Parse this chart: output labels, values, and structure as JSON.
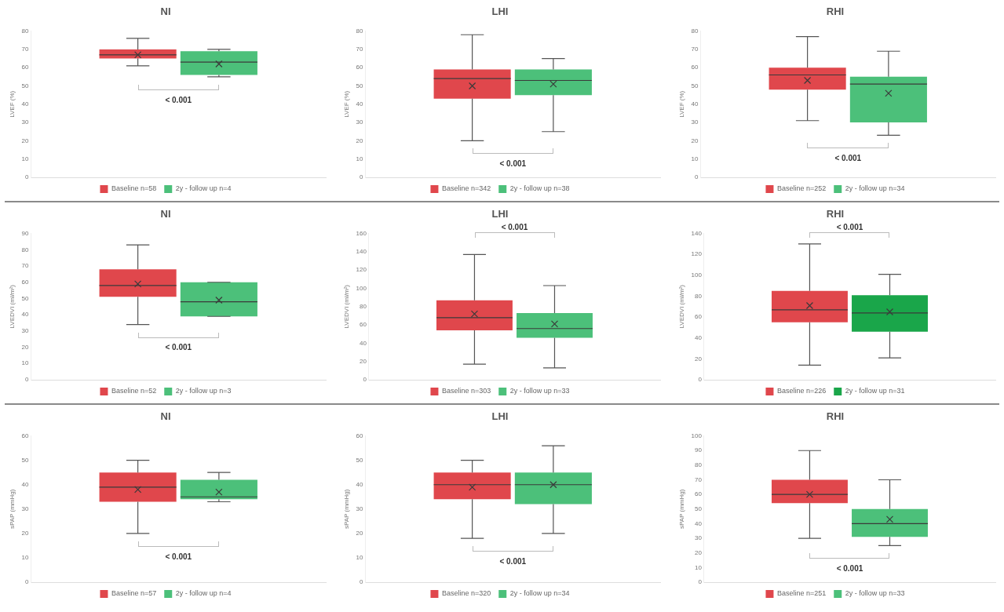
{
  "chart_data": [
    {
      "type": "box",
      "title": "NI",
      "ylabel": "LVEF (%)",
      "categories": [
        null
      ],
      "ylim": [
        0,
        80
      ],
      "yticks": [
        0,
        10,
        20,
        30,
        40,
        50,
        60,
        70,
        80
      ],
      "tick_labels": "y",
      "legend": "bottom",
      "annotations": [
        "< 0.001"
      ],
      "series": [
        {
          "name": "Baseline n=58",
          "color": "#e0474c",
          "boxes": [
            {
              "low": 61,
              "q1": 65,
              "median": 67,
              "q3": 70,
              "high": 76,
              "mean": 67
            }
          ]
        },
        {
          "name": "2y - follow up n=4",
          "color": "#4cc07a",
          "boxes": [
            {
              "low": 55,
              "q1": 56,
              "median": 63,
              "q3": 69,
              "high": 70,
              "mean": 62
            }
          ]
        }
      ]
    },
    {
      "type": "box",
      "title": "LHI",
      "ylabel": "LVEF (%)",
      "categories": [
        null
      ],
      "ylim": [
        0,
        80
      ],
      "yticks": [
        0,
        10,
        20,
        30,
        40,
        50,
        60,
        70,
        80
      ],
      "tick_labels": "y",
      "legend": "bottom",
      "annotations": [
        "< 0.001"
      ],
      "series": [
        {
          "name": "Baseline n=342",
          "color": "#e0474c",
          "boxes": [
            {
              "low": 20,
              "q1": 43,
              "median": 54,
              "q3": 59,
              "high": 78,
              "mean": 50
            }
          ]
        },
        {
          "name": "2y - follow up n=38",
          "color": "#4cc07a",
          "boxes": [
            {
              "low": 25,
              "q1": 45,
              "median": 53,
              "q3": 59,
              "high": 65,
              "mean": 51
            }
          ]
        }
      ]
    },
    {
      "type": "box",
      "title": "RHI",
      "ylabel": "LVEF (%)",
      "categories": [
        null
      ],
      "ylim": [
        0,
        80
      ],
      "yticks": [
        0,
        10,
        20,
        30,
        40,
        50,
        60,
        70,
        80
      ],
      "tick_labels": "y",
      "legend": "bottom",
      "annotations": [
        "< 0.001"
      ],
      "series": [
        {
          "name": "Baseline n=252",
          "color": "#e0474c",
          "boxes": [
            {
              "low": 31,
              "q1": 48,
              "median": 56,
              "q3": 60,
              "high": 77,
              "mean": 53
            }
          ]
        },
        {
          "name": "2y - follow up n=34",
          "color": "#4cc07a",
          "boxes": [
            {
              "low": 23,
              "q1": 30,
              "median": 51,
              "q3": 55,
              "high": 69,
              "mean": 46
            }
          ]
        }
      ]
    },
    {
      "type": "box",
      "title": "NI",
      "ylabel": "LVEDVI (ml/m²)",
      "categories": [
        null
      ],
      "ylim": [
        0,
        90
      ],
      "yticks": [
        0,
        10,
        20,
        30,
        40,
        50,
        60,
        70,
        80,
        90
      ],
      "tick_labels": "y",
      "legend": "bottom",
      "annotations": [
        "< 0.001"
      ],
      "series": [
        {
          "name": "Baseline n=52",
          "color": "#e0474c",
          "boxes": [
            {
              "low": 34,
              "q1": 51,
              "median": 58,
              "q3": 68,
              "high": 83,
              "mean": 59
            }
          ]
        },
        {
          "name": "2y - follow up n=3",
          "color": "#4cc07a",
          "boxes": [
            {
              "low": 39,
              "q1": 39,
              "median": 48,
              "q3": 60,
              "high": 60,
              "mean": 49
            }
          ]
        }
      ]
    },
    {
      "type": "box",
      "title": "LHI",
      "ylabel": "LVEDVI (ml/m²)",
      "categories": [
        null
      ],
      "ylim": [
        0,
        160
      ],
      "yticks": [
        0,
        20,
        40,
        60,
        80,
        100,
        120,
        140,
        160
      ],
      "tick_labels": "y",
      "legend": "bottom",
      "annotations": [
        "< 0.001"
      ],
      "series": [
        {
          "name": "Baseline n=303",
          "color": "#e0474c",
          "boxes": [
            {
              "low": 17,
              "q1": 54,
              "median": 68,
              "q3": 87,
              "high": 137,
              "mean": 72
            }
          ]
        },
        {
          "name": "2y - follow up n=33",
          "color": "#4cc07a",
          "boxes": [
            {
              "low": 13,
              "q1": 46,
              "median": 56,
              "q3": 73,
              "high": 103,
              "mean": 61
            }
          ]
        }
      ]
    },
    {
      "type": "box",
      "title": "RHI",
      "ylabel": "LVEDVI (ml/m²)",
      "categories": [
        null
      ],
      "ylim": [
        0,
        140
      ],
      "yticks": [
        0,
        20,
        40,
        60,
        80,
        100,
        120,
        140
      ],
      "tick_labels": "y",
      "legend": "bottom",
      "annotations": [
        "< 0.001"
      ],
      "series": [
        {
          "name": "Baseline n=226",
          "color": "#e0474c",
          "boxes": [
            {
              "low": 14,
              "q1": 55,
              "median": 67,
              "q3": 85,
              "high": 130,
              "mean": 71
            }
          ]
        },
        {
          "name": "2y - follow up n=31",
          "color": "#1aa64a",
          "boxes": [
            {
              "low": 21,
              "q1": 46,
              "median": 64,
              "q3": 81,
              "high": 101,
              "mean": 65
            }
          ]
        }
      ]
    },
    {
      "type": "box",
      "title": "NI",
      "ylabel": "sPAP (mmHg)",
      "categories": [
        null
      ],
      "ylim": [
        0,
        60
      ],
      "yticks": [
        0,
        10,
        20,
        30,
        40,
        50,
        60
      ],
      "tick_labels": "y",
      "legend": "bottom",
      "annotations": [
        "< 0.001"
      ],
      "series": [
        {
          "name": "Baseline n=57",
          "color": "#e0474c",
          "boxes": [
            {
              "low": 20,
              "q1": 33,
              "median": 39,
              "q3": 45,
              "high": 50,
              "mean": 38
            }
          ]
        },
        {
          "name": "2y - follow up n=4",
          "color": "#4cc07a",
          "boxes": [
            {
              "low": 33,
              "q1": 34,
              "median": 35,
              "q3": 42,
              "high": 45,
              "mean": 37
            }
          ]
        }
      ]
    },
    {
      "type": "box",
      "title": "LHI",
      "ylabel": "sPAP (mmHg)",
      "categories": [
        null
      ],
      "ylim": [
        0,
        60
      ],
      "yticks": [
        0,
        10,
        20,
        30,
        40,
        50,
        60
      ],
      "tick_labels": "y",
      "legend": "bottom",
      "annotations": [
        "< 0.001"
      ],
      "series": [
        {
          "name": "Baseline n=320",
          "color": "#e0474c",
          "boxes": [
            {
              "low": 18,
              "q1": 34,
              "median": 40,
              "q3": 45,
              "high": 50,
              "mean": 39
            }
          ]
        },
        {
          "name": "2y - follow up n=34",
          "color": "#4cc07a",
          "boxes": [
            {
              "low": 20,
              "q1": 32,
              "median": 40,
              "q3": 45,
              "high": 56,
              "mean": 40
            }
          ]
        }
      ]
    },
    {
      "type": "box",
      "title": "RHI",
      "ylabel": "sPAP (mmHg)",
      "categories": [
        null
      ],
      "ylim": [
        0,
        100
      ],
      "yticks": [
        0,
        10,
        20,
        30,
        40,
        50,
        60,
        70,
        80,
        90,
        100
      ],
      "tick_labels": "y",
      "legend": "bottom",
      "annotations": [
        "< 0.001"
      ],
      "series": [
        {
          "name": "Baseline n=251",
          "color": "#e0474c",
          "boxes": [
            {
              "low": 30,
              "q1": 54,
              "median": 60,
              "q3": 70,
              "high": 90,
              "mean": 60
            }
          ]
        },
        {
          "name": "2y - follow up n=33",
          "color": "#4cc07a",
          "boxes": [
            {
              "low": 25,
              "q1": 31,
              "median": 40,
              "q3": 50,
              "high": 70,
              "mean": 43
            }
          ]
        }
      ]
    }
  ]
}
